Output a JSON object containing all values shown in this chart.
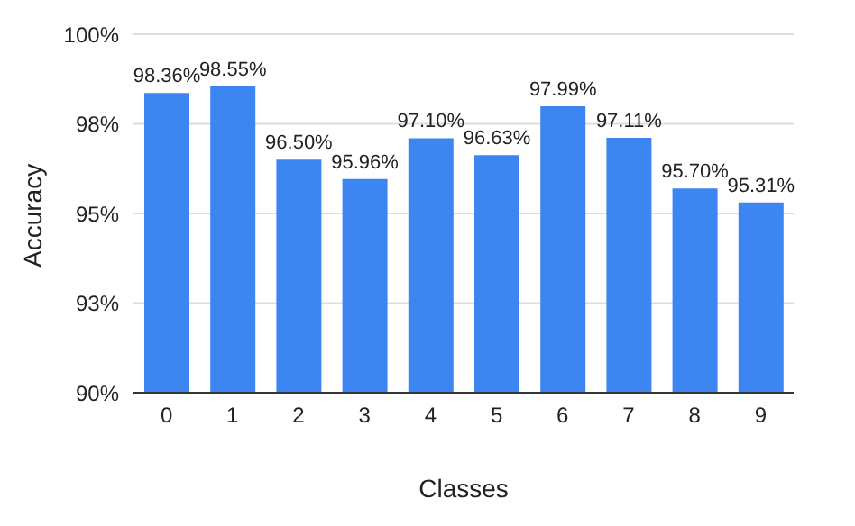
{
  "chart_data": {
    "type": "bar",
    "xlabel": "Classes",
    "ylabel": "Accuracy",
    "categories": [
      "0",
      "1",
      "2",
      "3",
      "4",
      "5",
      "6",
      "7",
      "8",
      "9"
    ],
    "values": [
      98.36,
      98.55,
      96.5,
      95.96,
      97.1,
      96.63,
      97.99,
      97.11,
      95.7,
      95.31
    ],
    "value_labels": [
      "98.36%",
      "98.55%",
      "96.50%",
      "95.96%",
      "97.10%",
      "96.63%",
      "97.99%",
      "97.11%",
      "95.70%",
      "95.31%"
    ],
    "color": "#3d85f0",
    "ylim": [
      90,
      100
    ],
    "yticks": [
      {
        "value": 90,
        "label": "90%"
      },
      {
        "value": 92.5,
        "label": "93%"
      },
      {
        "value": 95,
        "label": "95%"
      },
      {
        "value": 97.5,
        "label": "98%"
      },
      {
        "value": 100,
        "label": "100%"
      }
    ],
    "grid": "y"
  }
}
